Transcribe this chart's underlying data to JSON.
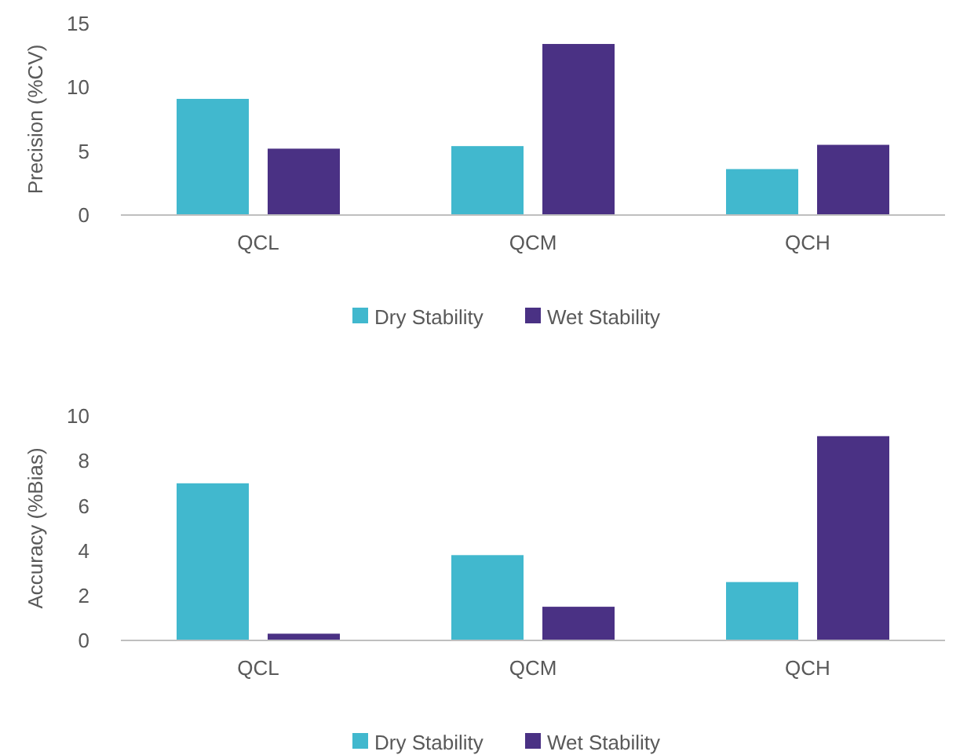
{
  "chart_data": [
    {
      "type": "bar",
      "ylabel": "Precision (%CV)",
      "categories": [
        "QCL",
        "QCM",
        "QCH"
      ],
      "ylim": [
        0,
        15
      ],
      "yticks": [
        0,
        5,
        10,
        15
      ],
      "grid": false,
      "legend": "bottom",
      "series": [
        {
          "name": "Dry Stability",
          "color": "#41b8ce",
          "values": [
            9.1,
            5.4,
            3.6
          ]
        },
        {
          "name": "Wet Stability",
          "color": "#4a3184",
          "values": [
            5.2,
            13.4,
            5.5
          ]
        }
      ]
    },
    {
      "type": "bar",
      "ylabel": "Accuracy (%Bias)",
      "categories": [
        "QCL",
        "QCM",
        "QCH"
      ],
      "ylim": [
        0,
        10
      ],
      "yticks": [
        0,
        2,
        4,
        6,
        8,
        10
      ],
      "grid": false,
      "legend": "bottom",
      "series": [
        {
          "name": "Dry Stability",
          "color": "#41b8ce",
          "values": [
            7.0,
            3.8,
            2.6
          ]
        },
        {
          "name": "Wet Stability",
          "color": "#4a3184",
          "values": [
            0.3,
            1.5,
            9.1
          ]
        }
      ]
    }
  ]
}
